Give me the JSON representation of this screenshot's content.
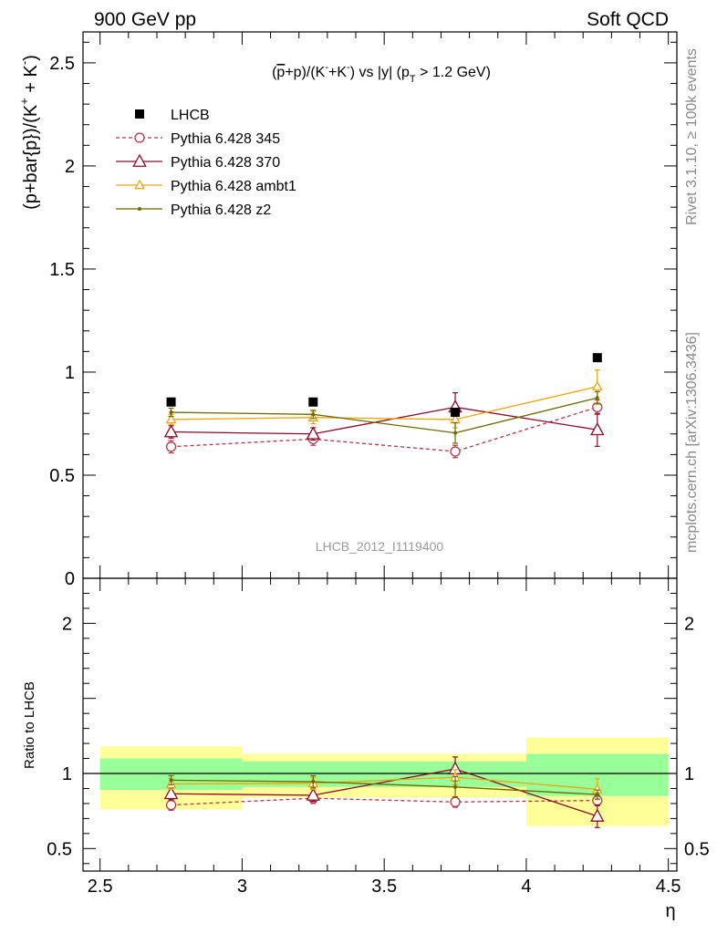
{
  "header": {
    "left": "900 GeV pp",
    "right": "Soft QCD"
  },
  "side_labels": {
    "rivet": "Rivet 3.1.10, ≥ 100k events",
    "mcplots": "mcplots.cern.ch [arXiv:1306.3436]"
  },
  "analysis_id": "LHCB_2012_I1119400",
  "chart_data": [
    {
      "type": "scatter",
      "title": "(p̅+p)/(K⁻+K⁻) vs |y| (p_T > 1.2 GeV)",
      "title_parts": {
        "pre": "(",
        "pbar": "p",
        "mid": "+p)/(K",
        "k1": "-",
        "plus": "+K",
        "k2": "-",
        "post": ") vs |y| (p",
        "sub": "T",
        "tail": " > 1.2 GeV)"
      },
      "ylabel": "(p+bar{p})/(K⁺ + K⁻)",
      "ylabel_parts": {
        "main": "(p+bar{p})/(K",
        "sup1": "+",
        "mid": " + K",
        "sup2": "-",
        "end": ")"
      },
      "xlim": [
        2.44,
        4.53
      ],
      "ylim": [
        0,
        2.65
      ],
      "yticks": [
        0,
        0.5,
        1,
        1.5,
        2,
        2.5
      ],
      "ytick_labels": [
        "0",
        "0.5",
        "1",
        "1.5",
        "2",
        "2.5"
      ],
      "grid": false,
      "legend_position": "top-left",
      "series": [
        {
          "name": "LHCB",
          "color": "#000000",
          "marker": "filled-square",
          "line": "none",
          "x": [
            2.75,
            3.25,
            3.75,
            4.25
          ],
          "y": [
            0.855,
            0.855,
            0.805,
            1.07
          ],
          "yerr": [
            0.012,
            0.012,
            0.012,
            0.012
          ]
        },
        {
          "name": "Pythia 6.428 345",
          "color": "#b3364a",
          "marker": "open-circle",
          "line": "dashed",
          "x": [
            2.75,
            3.25,
            3.75,
            4.25
          ],
          "y": [
            0.638,
            0.675,
            0.615,
            0.83
          ],
          "yerr": [
            0.03,
            0.03,
            0.03,
            0.035
          ]
        },
        {
          "name": "Pythia 6.428 370",
          "color": "#8b0a2a",
          "marker": "open-triangle",
          "line": "solid",
          "x": [
            2.75,
            3.25,
            3.75,
            4.25
          ],
          "y": [
            0.71,
            0.7,
            0.83,
            0.72
          ],
          "yerr": [
            0.03,
            0.03,
            0.07,
            0.08
          ]
        },
        {
          "name": "Pythia 6.428 ambt1",
          "color": "#f0a30a",
          "marker": "open-triangle",
          "line": "solid",
          "x": [
            2.75,
            3.25,
            3.75,
            4.25
          ],
          "y": [
            0.77,
            0.78,
            0.77,
            0.93
          ],
          "yerr": [
            0.025,
            0.03,
            0.04,
            0.08
          ]
        },
        {
          "name": "Pythia 6.428 z2",
          "color": "#6b6b00",
          "marker": "dot",
          "line": "solid",
          "x": [
            2.75,
            3.25,
            3.75,
            4.25
          ],
          "y": [
            0.805,
            0.795,
            0.705,
            0.875
          ],
          "yerr": [
            0.02,
            0.02,
            0.05,
            0.03
          ]
        }
      ]
    },
    {
      "type": "scatter",
      "xlabel": "η",
      "ylabel": "Ratio to LHCB",
      "xlim": [
        2.44,
        4.53
      ],
      "xticks": [
        2.5,
        3,
        3.5,
        4,
        4.5
      ],
      "xtick_labels": [
        "2.5",
        "3",
        "3.5",
        "4",
        "4.5"
      ],
      "ylim": [
        0.35,
        2.3
      ],
      "yticks": [
        0.5,
        1,
        2
      ],
      "ytick_labels": [
        "0.5",
        "1",
        "2"
      ],
      "reference_line": 1,
      "bands": [
        {
          "x0": 2.5,
          "x1": 3.0,
          "inner": [
            0.89,
            1.1
          ],
          "outer": [
            0.76,
            1.18
          ]
        },
        {
          "x0": 3.0,
          "x1": 4.0,
          "inner": [
            0.91,
            1.08
          ],
          "outer": [
            0.84,
            1.13
          ]
        },
        {
          "x0": 4.0,
          "x1": 4.5,
          "inner": [
            0.85,
            1.13
          ],
          "outer": [
            0.65,
            1.24
          ]
        }
      ],
      "band_colors": {
        "inner": "#99ff99",
        "outer": "#ffff99"
      },
      "series": [
        {
          "name": "Pythia 6.428 345",
          "color": "#b3364a",
          "marker": "open-circle",
          "line": "dashed",
          "x": [
            2.75,
            3.25,
            3.75,
            4.25
          ],
          "y": [
            0.79,
            0.835,
            0.81,
            0.82
          ],
          "yerr": [
            0.035,
            0.035,
            0.035,
            0.035
          ]
        },
        {
          "name": "Pythia 6.428 370",
          "color": "#8b0a2a",
          "marker": "open-triangle",
          "line": "solid",
          "x": [
            2.75,
            3.25,
            3.75,
            4.25
          ],
          "y": [
            0.865,
            0.855,
            1.03,
            0.715
          ],
          "yerr": [
            0.04,
            0.04,
            0.08,
            0.075
          ]
        },
        {
          "name": "Pythia 6.428 ambt1",
          "color": "#f0a30a",
          "marker": "open-triangle",
          "line": "solid",
          "x": [
            2.75,
            3.25,
            3.75,
            4.25
          ],
          "y": [
            0.93,
            0.935,
            0.975,
            0.895
          ],
          "yerr": [
            0.035,
            0.04,
            0.05,
            0.07
          ]
        },
        {
          "name": "Pythia 6.428 z2",
          "color": "#6b6b00",
          "marker": "dot",
          "line": "solid",
          "x": [
            2.75,
            3.25,
            3.75,
            4.25
          ],
          "y": [
            0.955,
            0.945,
            0.91,
            0.86
          ],
          "yerr": [
            0.03,
            0.04,
            0.07,
            0.03
          ]
        }
      ]
    }
  ]
}
